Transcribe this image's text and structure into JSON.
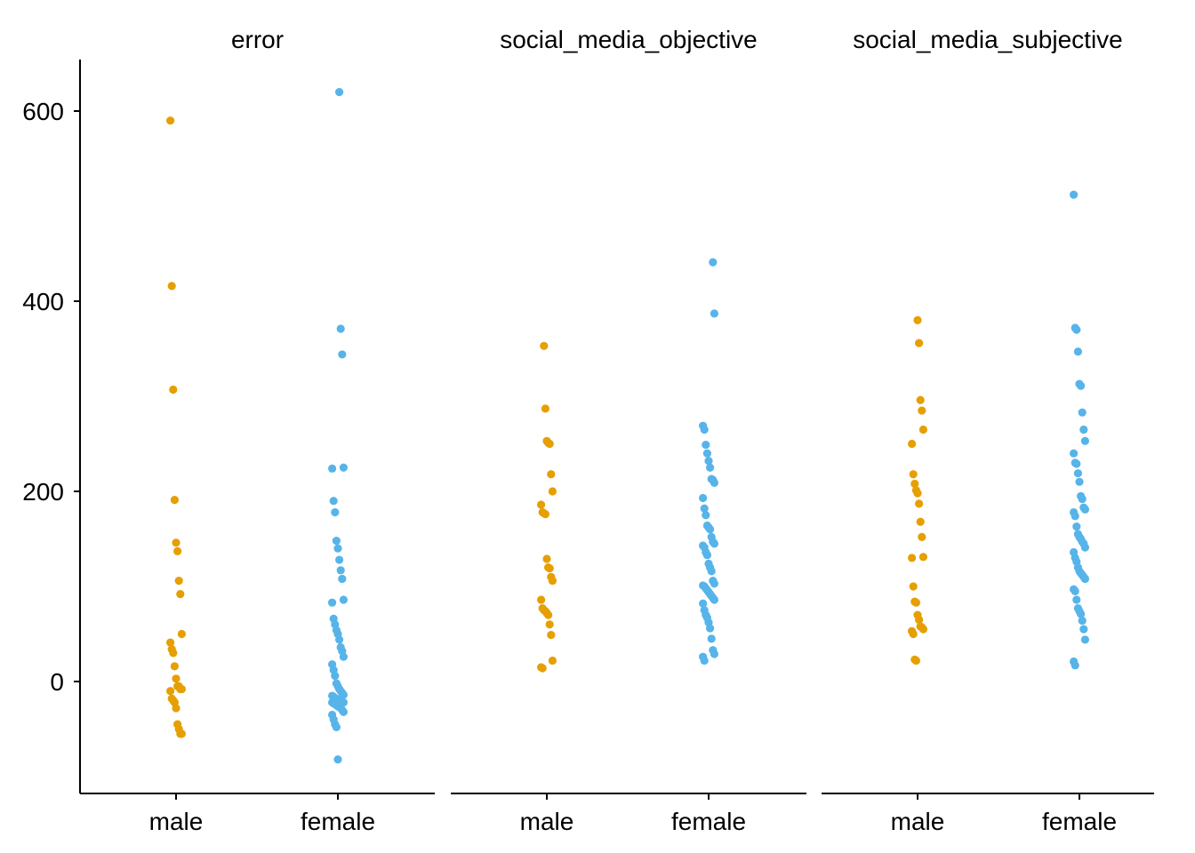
{
  "chart_data": {
    "type": "scatter",
    "subtype": "strip (jittered dot) plot, faceted",
    "title": "",
    "xlabel": "",
    "ylabel": "",
    "ylim": [
      -120,
      640
    ],
    "y_ticks": [
      0,
      200,
      400,
      600
    ],
    "grid": false,
    "legend": "none",
    "categories": [
      "male",
      "female"
    ],
    "colors": {
      "male": "#E69F00",
      "female": "#56B4E9"
    },
    "panels": [
      {
        "name": "error",
        "series": [
          {
            "category": "male",
            "values": [
              590,
              416,
              307,
              191,
              146,
              137,
              106,
              92,
              50,
              41,
              34,
              30,
              16,
              3,
              -5,
              -5,
              -8,
              -8,
              -10,
              -18,
              -20,
              -22,
              -28,
              -45,
              -50,
              -55,
              -55
            ]
          },
          {
            "category": "female",
            "values": [
              620,
              371,
              344,
              225,
              224,
              190,
              178,
              148,
              140,
              128,
              117,
              108,
              86,
              83,
              66,
              60,
              54,
              50,
              44,
              36,
              32,
              26,
              18,
              12,
              6,
              -2,
              -5,
              -8,
              -10,
              -12,
              -14,
              -15,
              -16,
              -18,
              -18,
              -19,
              -20,
              -20,
              -21,
              -22,
              -22,
              -23,
              -24,
              -25,
              -26,
              -27,
              -28,
              -30,
              -32,
              -35,
              -40,
              -45,
              -48,
              -82
            ]
          }
        ]
      },
      {
        "name": "social_media_objective",
        "series": [
          {
            "category": "male",
            "values": [
              353,
              287,
              253,
              251,
              250,
              218,
              200,
              186,
              178,
              177,
              176,
              129,
              120,
              119,
              110,
              106,
              86,
              77,
              75,
              74,
              72,
              70,
              60,
              49,
              22,
              15,
              14
            ]
          },
          {
            "category": "female",
            "values": [
              441,
              387,
              269,
              265,
              249,
              240,
              232,
              225,
              213,
              212,
              209,
              193,
              182,
              175,
              164,
              162,
              160,
              152,
              147,
              145,
              143,
              141,
              136,
              133,
              124,
              120,
              116,
              106,
              103,
              101,
              100,
              98,
              96,
              94,
              92,
              90,
              88,
              86,
              82,
              75,
              70,
              67,
              62,
              56,
              45,
              33,
              29,
              26,
              22
            ]
          }
        ]
      },
      {
        "name": "social_media_subjective",
        "series": [
          {
            "category": "male",
            "values": [
              380,
              356,
              296,
              285,
              265,
              250,
              218,
              208,
              201,
              198,
              187,
              168,
              152,
              131,
              130,
              100,
              84,
              83,
              70,
              65,
              58,
              57,
              55,
              53,
              50,
              23,
              22
            ]
          },
          {
            "category": "female",
            "values": [
              512,
              372,
              370,
              347,
              313,
              311,
              283,
              265,
              253,
              240,
              230,
              229,
              219,
              210,
              195,
              192,
              183,
              181,
              178,
              174,
              163,
              155,
              152,
              150,
              147,
              145,
              141,
              136,
              130,
              126,
              120,
              116,
              114,
              112,
              110,
              108,
              97,
              95,
              86,
              77,
              74,
              71,
              64,
              55,
              44,
              21,
              17
            ]
          }
        ]
      }
    ]
  }
}
